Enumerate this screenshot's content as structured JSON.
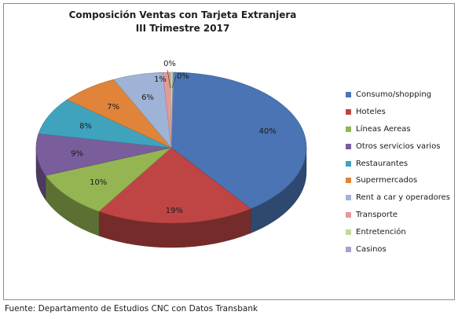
{
  "title": {
    "line1": "Composición Ventas con Tarjeta Extranjera",
    "line2": "III Trimestre 2017"
  },
  "source": "Fuente: Departamento de Estudios CNC con Datos Transbank",
  "chart_data": {
    "type": "pie",
    "title": "Composición Ventas con Tarjeta Extranjera III Trimestre 2017",
    "style": "3d",
    "legend_position": "right",
    "categories": [
      "Consumo/shopping",
      "Hoteles",
      "Líneas Aereas",
      "Otros servicios varios",
      "Restaurantes",
      "Supermercados",
      "Rent a car y operadores",
      "Transporte",
      "Entretención",
      "Casinos"
    ],
    "values": [
      40,
      19,
      10,
      9,
      8,
      7,
      6,
      1,
      0,
      0
    ],
    "labels": [
      "40%",
      "19%",
      "10%",
      "9%",
      "8%",
      "7%",
      "6%",
      "1%",
      "0%",
      "0%"
    ],
    "colors": [
      "#4a74b3",
      "#bf4545",
      "#95b552",
      "#7a5e9c",
      "#40a3bd",
      "#e0843a",
      "#9fb3d6",
      "#e59999",
      "#c3d99c",
      "#aaa1cc"
    ],
    "draw_fractions": [
      0.4,
      0.19,
      0.1,
      0.09,
      0.08,
      0.07,
      0.06,
      0.009,
      0.003,
      0.001
    ]
  }
}
